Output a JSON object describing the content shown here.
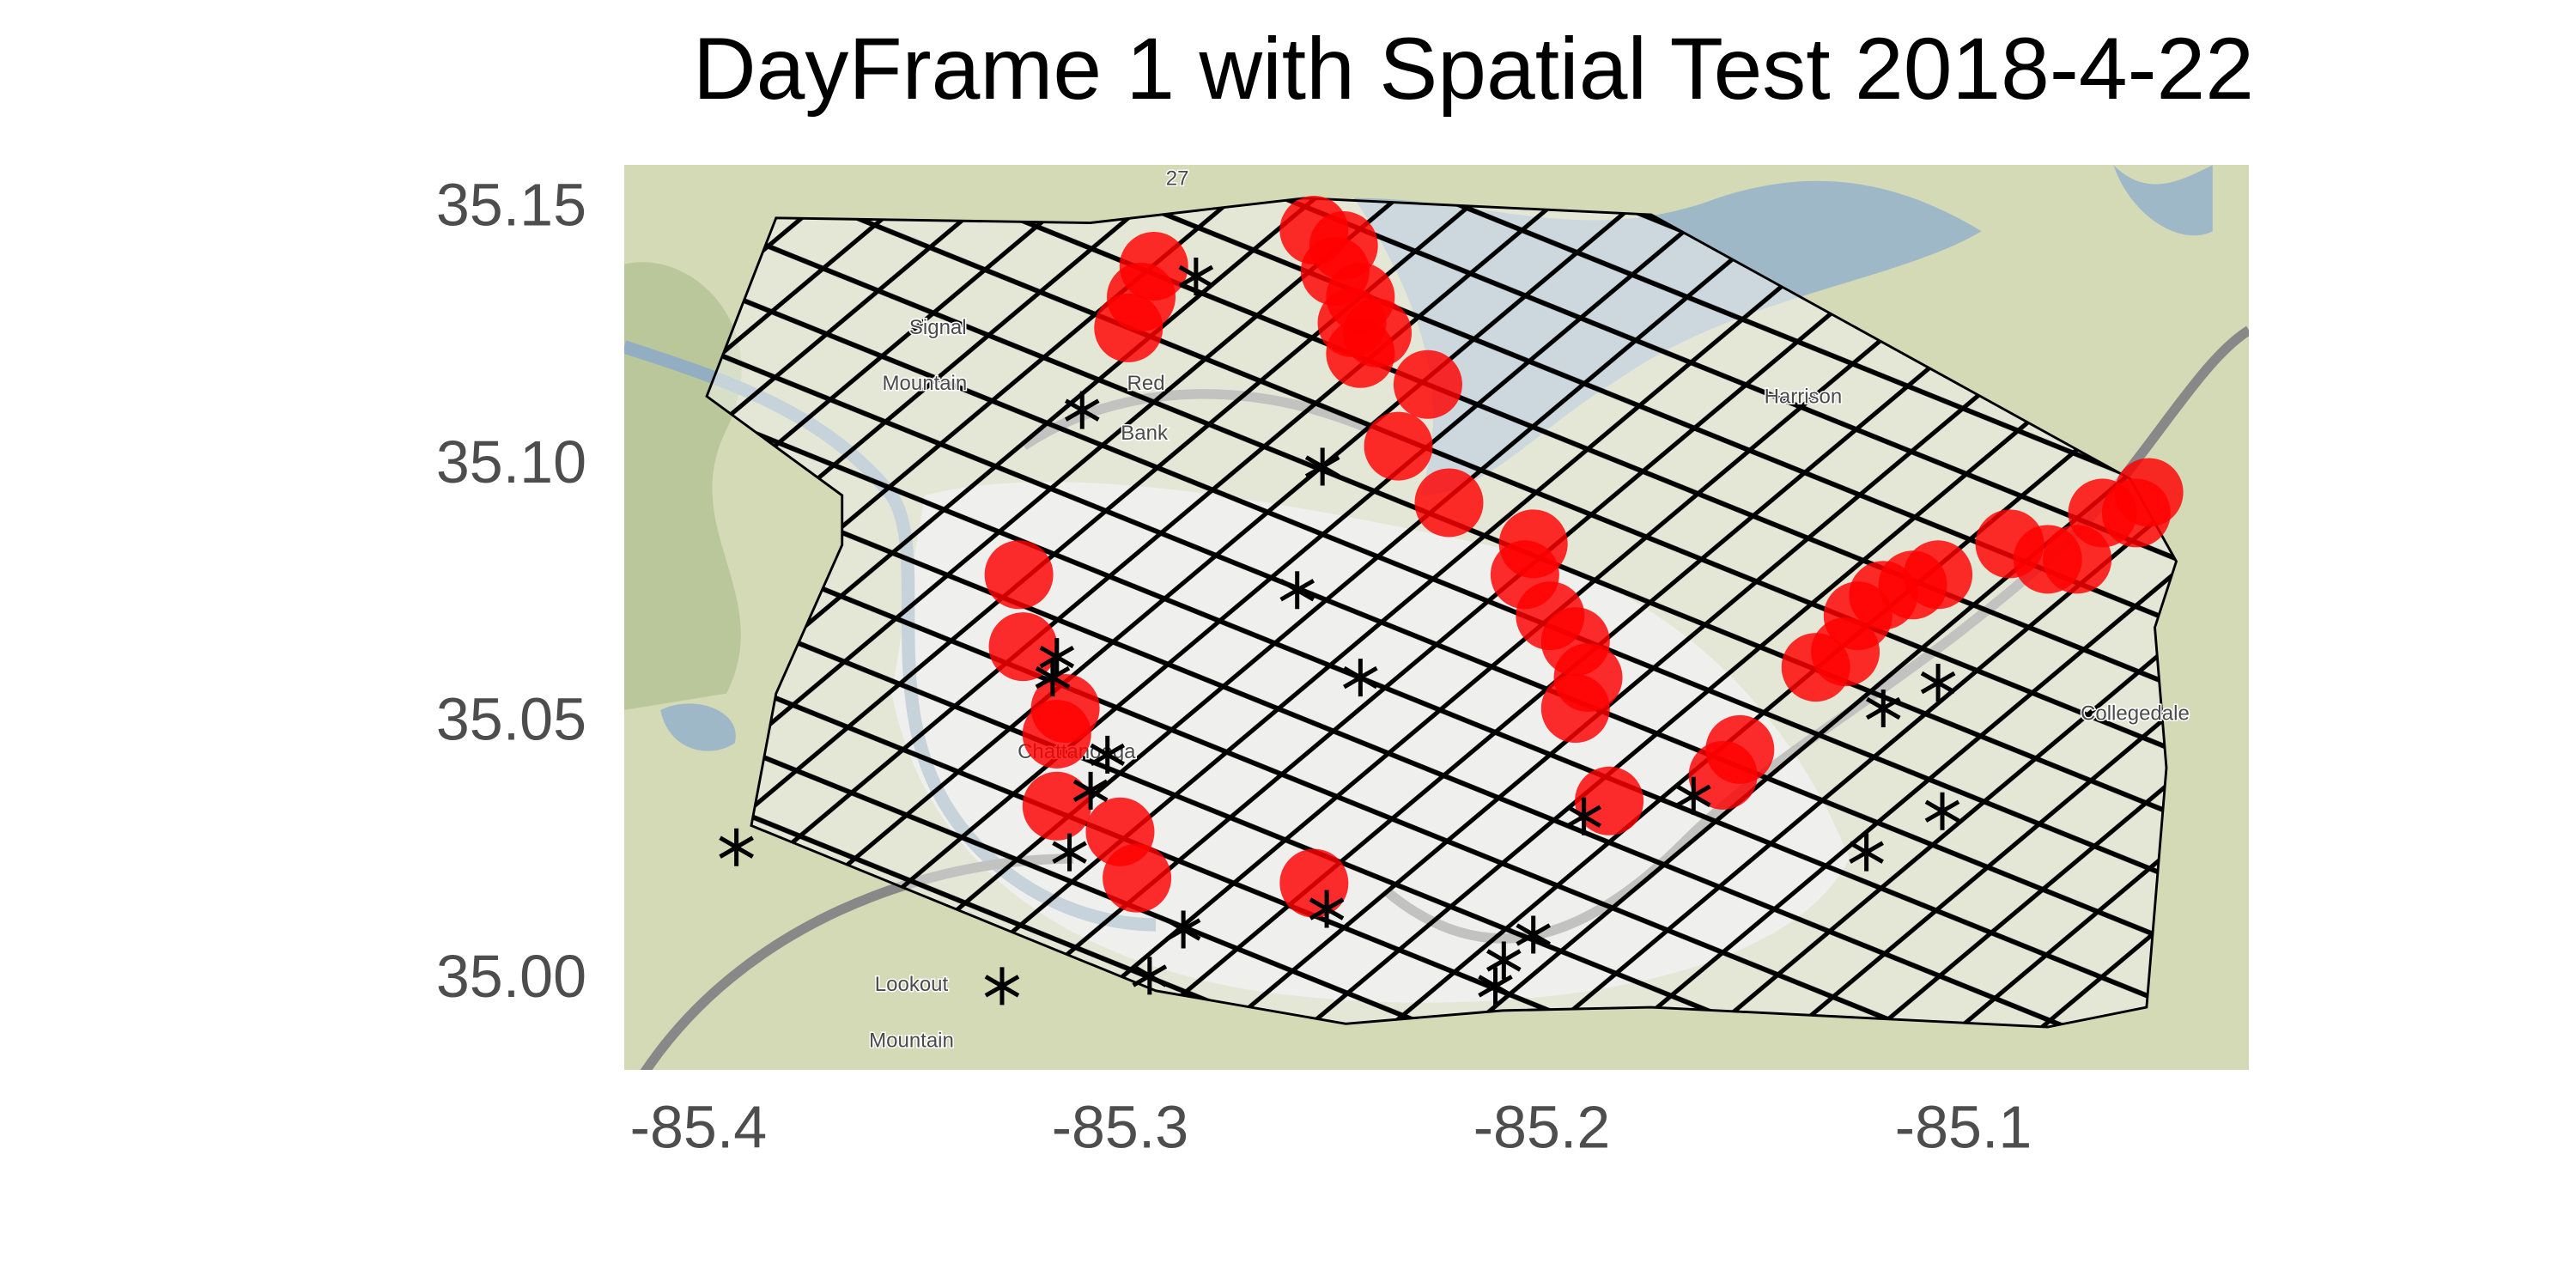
{
  "chart_data": {
    "type": "scatter",
    "title": "DayFrame 1 with Spatial Test 2018-4-22",
    "xlim": [
      -85.4176,
      -85.0323
    ],
    "ylim": [
      34.9827,
      35.1587
    ],
    "xticks": [
      -85.4,
      -85.3,
      -85.2,
      -85.1
    ],
    "yticks": [
      {
        "value": 35.15,
        "label": "35.15"
      },
      {
        "value": 35.1,
        "label": "35.10"
      },
      {
        "value": 35.05,
        "label": "35.05"
      },
      {
        "value": 35.0,
        "label": "35.00"
      }
    ],
    "annotations": [
      "Signal",
      "Mountain",
      "Red",
      "Bank",
      "Harrison",
      "Chattanooga",
      "Lookout",
      "Mountain",
      "Collegedale",
      "27"
    ],
    "series": [
      {
        "marker": "circle",
        "color": "#ff0000",
        "x": [
          -85.292,
          -85.295,
          -85.298,
          -85.254,
          -85.247,
          -85.249,
          -85.243,
          -85.245,
          -85.239,
          -85.243,
          -85.227,
          -85.234,
          -85.222,
          -85.202,
          -85.204,
          -85.198,
          -85.192,
          -85.189,
          -85.192,
          -85.184,
          -85.153,
          -85.157,
          -85.324,
          -85.323,
          -85.313,
          -85.315,
          -85.315,
          -85.3,
          -85.296,
          -85.254,
          -85.135,
          -85.128,
          -85.125,
          -85.119,
          -85.112,
          -85.106,
          -85.089,
          -85.08,
          -85.073,
          -85.067,
          -85.059,
          -85.056
        ],
        "values": [
          35.139,
          35.133,
          35.127,
          35.146,
          35.143,
          35.138,
          35.133,
          35.128,
          35.126,
          35.122,
          35.116,
          35.104,
          35.093,
          35.085,
          35.079,
          35.071,
          35.066,
          35.059,
          35.053,
          35.035,
          35.045,
          35.04,
          35.079,
          35.065,
          35.053,
          35.048,
          35.034,
          35.029,
          35.02,
          35.019,
          35.061,
          35.064,
          35.071,
          35.075,
          35.077,
          35.079,
          35.085,
          35.082,
          35.082,
          35.091,
          35.091,
          35.095
        ]
      },
      {
        "marker": "star",
        "color": "#000000",
        "x": [
          -85.282,
          -85.309,
          -85.252,
          -85.258,
          -85.243,
          -85.315,
          -85.316,
          -85.303,
          -85.307,
          -85.312,
          -85.285,
          -85.293,
          -85.328,
          -85.391,
          -85.251,
          -85.209,
          -85.211,
          -85.202,
          -85.19,
          -85.164,
          -85.119,
          -85.106,
          -85.105,
          -85.123
        ],
        "values": [
          35.137,
          35.111,
          35.1,
          35.076,
          35.059,
          35.063,
          35.059,
          35.044,
          35.037,
          35.025,
          35.01,
          35.001,
          34.999,
          35.026,
          35.014,
          35.004,
          34.999,
          35.009,
          35.032,
          35.036,
          35.053,
          35.058,
          35.033,
          35.025
        ]
      }
    ]
  }
}
